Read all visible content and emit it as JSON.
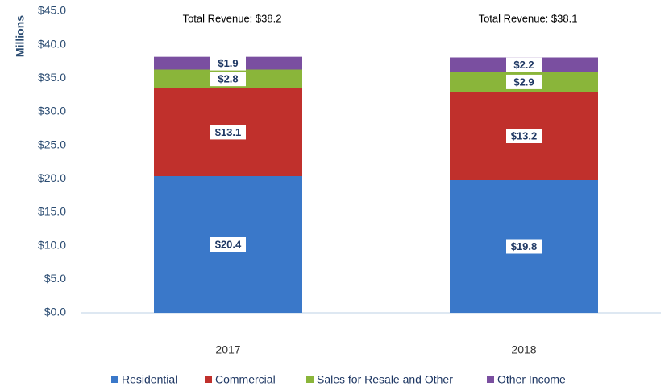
{
  "chart_data": {
    "type": "stacked_bar",
    "y_label": "Millions",
    "categories": [
      "2017",
      "2018"
    ],
    "series": [
      {
        "name": "Residential",
        "color": "#3a78c9",
        "values": [
          20.4,
          19.8
        ],
        "value_labels": [
          "$20.4",
          "$19.8"
        ]
      },
      {
        "name": "Commercial",
        "color": "#c0302c",
        "values": [
          13.1,
          13.2
        ],
        "value_labels": [
          "$13.1",
          "$13.2"
        ]
      },
      {
        "name": "Sales for Resale and Other",
        "color": "#8ab53a",
        "values": [
          2.8,
          2.9
        ],
        "value_labels": [
          "$2.8",
          "$2.9"
        ]
      },
      {
        "name": "Other Income",
        "color": "#7a4fa0",
        "values": [
          1.9,
          2.2
        ],
        "value_labels": [
          "$1.9",
          "$2.2"
        ]
      }
    ],
    "annotations": [
      "Total Revenue: $38.2",
      "Total Revenue: $38.1"
    ],
    "ylim": [
      0,
      45
    ],
    "yticks": [
      {
        "value": 0,
        "label": "$0.0"
      },
      {
        "value": 5,
        "label": "$5.0"
      },
      {
        "value": 10,
        "label": "$10.0"
      },
      {
        "value": 15,
        "label": "$15.0"
      },
      {
        "value": 20,
        "label": "$20.0"
      },
      {
        "value": 25,
        "label": "$25.0"
      },
      {
        "value": 30,
        "label": "$30.0"
      },
      {
        "value": 35,
        "label": "$35.0"
      },
      {
        "value": 40,
        "label": "$40.0"
      },
      {
        "value": 45,
        "label": "$45.0"
      }
    ],
    "grid": false,
    "legend": "bottom"
  }
}
